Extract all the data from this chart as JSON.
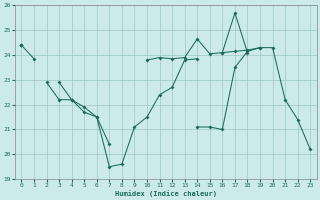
{
  "xlabel": "Humidex (Indice chaleur)",
  "x": [
    0,
    1,
    2,
    3,
    4,
    5,
    6,
    7,
    8,
    9,
    10,
    11,
    12,
    13,
    14,
    15,
    16,
    17,
    18,
    19,
    20,
    21,
    22,
    23
  ],
  "line1": [
    24.4,
    23.85,
    null,
    null,
    null,
    null,
    null,
    null,
    null,
    null,
    23.8,
    23.9,
    23.85,
    23.9,
    24.65,
    24.05,
    24.1,
    24.15,
    24.2,
    24.3,
    24.3,
    22.2,
    21.4,
    20.2
  ],
  "line2": [
    24.4,
    null,
    22.9,
    22.2,
    22.2,
    21.7,
    21.5,
    19.5,
    19.6,
    21.1,
    21.5,
    22.4,
    22.7,
    23.8,
    23.85,
    null,
    24.1,
    25.7,
    24.1,
    null,
    null,
    null,
    null,
    null
  ],
  "line3": [
    24.4,
    null,
    null,
    22.9,
    22.2,
    21.9,
    21.5,
    20.4,
    null,
    null,
    null,
    null,
    null,
    null,
    21.1,
    21.1,
    21.0,
    23.5,
    24.15,
    24.3,
    null,
    null,
    null,
    null
  ],
  "background_color": "#cceaea",
  "grid_color": "#9ec8c8",
  "line_color": "#1a6b5a",
  "ylim": [
    19,
    26
  ],
  "yticks": [
    19,
    20,
    21,
    22,
    23,
    24,
    25,
    26
  ],
  "xticks": [
    0,
    1,
    2,
    3,
    4,
    5,
    6,
    7,
    8,
    9,
    10,
    11,
    12,
    13,
    14,
    15,
    16,
    17,
    18,
    19,
    20,
    21,
    22,
    23
  ]
}
